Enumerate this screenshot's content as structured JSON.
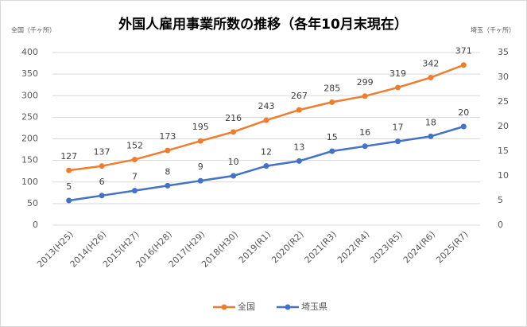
{
  "chart_data": {
    "type": "line",
    "title": "外国人雇用事業所数の推移（各年10月末現在）",
    "y_label": "全国（千ヶ所）",
    "y2_label": "埼玉（千ヶ所）",
    "categories": [
      "2013(H25)",
      "2014(H26)",
      "2015(H27)",
      "2016(H28)",
      "2017(H29)",
      "2018(H30)",
      "2019(R1)",
      "2020(R2)",
      "2021(R3)",
      "2022(R4)",
      "2023(R5)",
      "2024(R6)",
      "2025(R7)"
    ],
    "series": [
      {
        "name": "全国",
        "color": "#ed7d31",
        "values": [
          127,
          137,
          152,
          173,
          195,
          216,
          243,
          267,
          285,
          299,
          319,
          342,
          371
        ]
      },
      {
        "name": "埼玉県",
        "color": "#4472c4",
        "axis": "y2",
        "values": [
          5,
          6,
          7,
          8,
          9,
          10,
          12,
          13,
          15,
          16,
          17,
          18,
          20
        ]
      }
    ],
    "ylim": [
      0,
      400
    ],
    "yticks": [
      0,
      50,
      100,
      150,
      200,
      250,
      300,
      350,
      400
    ],
    "y2lim": [
      0,
      35
    ],
    "y2ticks": [
      0,
      5,
      10,
      15,
      20,
      25,
      30,
      35
    ],
    "grid": true,
    "legend": "bottom"
  }
}
